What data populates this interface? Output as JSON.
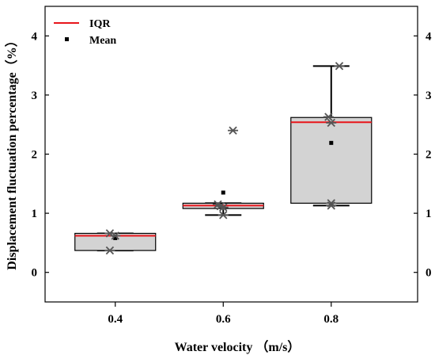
{
  "chart_data": {
    "type": "box",
    "xlabel": "Water velocity （m/s）",
    "ylabel": "Displacement fluctuation percentage（%）",
    "xlim": [
      0.27,
      0.96
    ],
    "ylim": [
      -0.5,
      4.5
    ],
    "xticks": [
      0.4,
      0.6,
      0.8
    ],
    "yticks": [
      0,
      1,
      2,
      3,
      4
    ],
    "xtick_labels": [
      "0.4",
      "0.6",
      "0.8"
    ],
    "ytick_labels": [
      "0",
      "1",
      "2",
      "3",
      "4"
    ],
    "mirror_right_axis": true,
    "legend": {
      "position": "top-left",
      "entries": [
        {
          "label": "IQR",
          "marker": "red-line"
        },
        {
          "label": "Mean",
          "marker": "black-square"
        }
      ]
    },
    "colors": {
      "box_fill": "#d3d3d3",
      "iqr_line": "#e8151b",
      "marker": "#555555"
    },
    "boxes": [
      {
        "category": "0.4",
        "x": 0.4,
        "q1": 0.37,
        "q3": 0.66,
        "median": 0.62,
        "whisker_low": 0.37,
        "whisker_high": 0.66,
        "mean": 0.58,
        "points": [
          {
            "x": 0.39,
            "y": 0.66
          },
          {
            "x": 0.4,
            "y": 0.62
          },
          {
            "x": 0.39,
            "y": 0.37
          }
        ]
      },
      {
        "category": "0.6",
        "x": 0.6,
        "q1": 1.08,
        "q3": 1.17,
        "median": 1.13,
        "whisker_low": 0.97,
        "whisker_high": 1.17,
        "mean": 1.35,
        "points": [
          {
            "x": 0.59,
            "y": 1.15
          },
          {
            "x": 0.595,
            "y": 1.12
          },
          {
            "x": 0.6,
            "y": 1.1
          },
          {
            "x": 0.6,
            "y": 0.97
          },
          {
            "x": 0.618,
            "y": 2.4
          }
        ]
      },
      {
        "category": "0.8",
        "x": 0.8,
        "q1": 1.17,
        "q3": 2.62,
        "median": 2.54,
        "whisker_low": 1.13,
        "whisker_high": 3.49,
        "mean": 2.19,
        "points": [
          {
            "x": 0.795,
            "y": 2.63
          },
          {
            "x": 0.8,
            "y": 2.53
          },
          {
            "x": 0.815,
            "y": 3.49
          },
          {
            "x": 0.8,
            "y": 1.17
          },
          {
            "x": 0.8,
            "y": 1.13
          }
        ]
      }
    ]
  }
}
